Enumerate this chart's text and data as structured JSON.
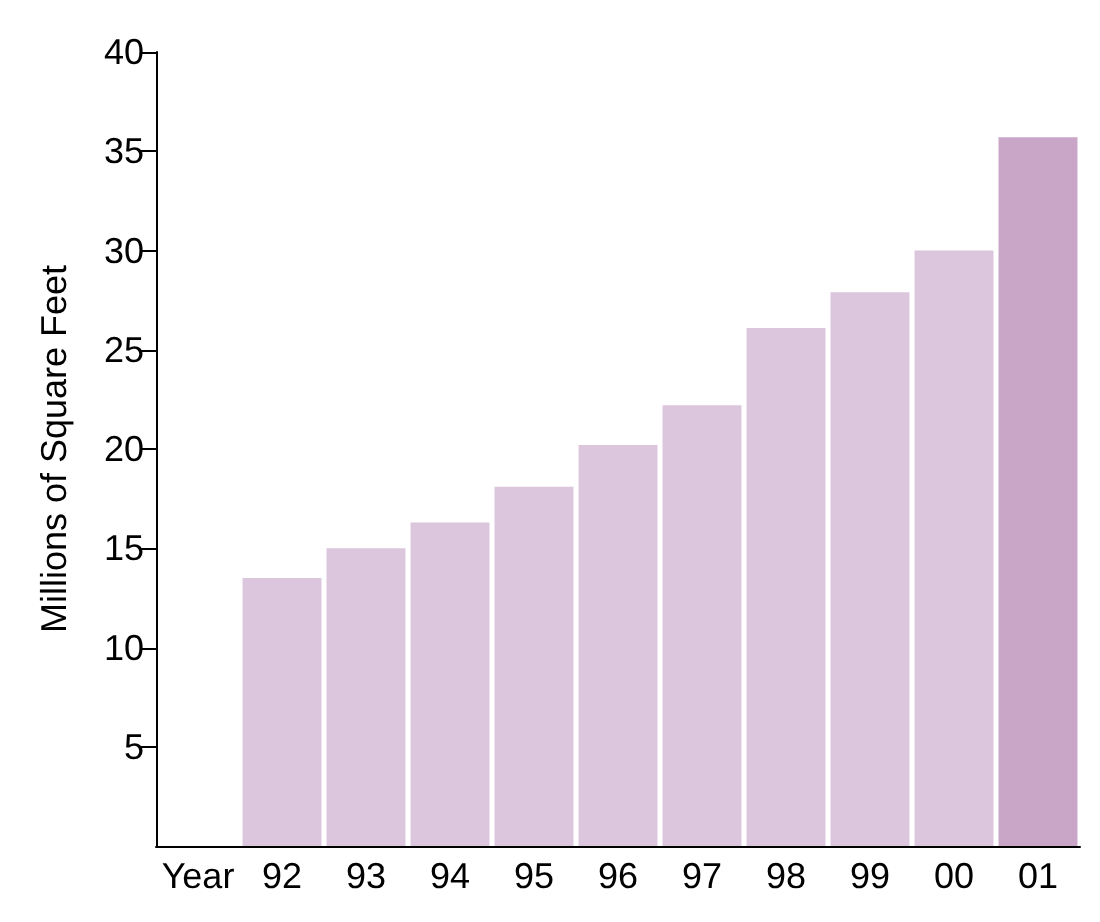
{
  "chart_data": {
    "type": "bar",
    "ylabel": "Millions of Square Feet",
    "categories": [
      "Year",
      "92",
      "93",
      "94",
      "95",
      "96",
      "97",
      "98",
      "99",
      "00",
      "01"
    ],
    "values": [
      null,
      13.5,
      15.0,
      16.3,
      18.1,
      20.2,
      22.2,
      26.1,
      27.9,
      30.0,
      35.7
    ],
    "colors": [
      "#dcc6dd",
      "#dcc6dd",
      "#dcc6dd",
      "#dcc6dd",
      "#dcc6dd",
      "#dcc6dd",
      "#dcc6dd",
      "#dcc6dd",
      "#dcc6dd",
      "#dcc6dd",
      "#c9a6c8"
    ],
    "ylim": [
      0,
      40
    ],
    "yticks": [
      5,
      10,
      15,
      20,
      25,
      30,
      35,
      40
    ],
    "grid": false
  }
}
